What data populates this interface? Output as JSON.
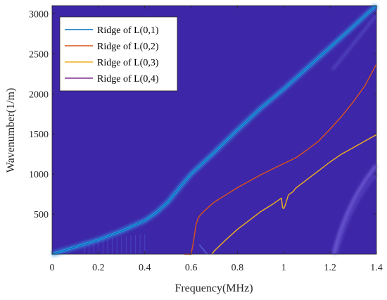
{
  "chart_data": {
    "type": "line",
    "title": "",
    "xlabel": "Frequency(MHz)",
    "ylabel": "Wavenumber(1/m)",
    "xlim": [
      0,
      1.4
    ],
    "ylim": [
      0,
      3100
    ],
    "x_ticks": [
      0,
      0.2,
      0.4,
      0.6,
      0.8,
      1,
      1.2,
      1.4
    ],
    "x_tick_labels": [
      "0",
      "0.2",
      "0.4",
      "0.6",
      "0.8",
      "1",
      "1.2",
      "1.4"
    ],
    "y_ticks": [
      500,
      1000,
      1500,
      2000,
      2500,
      3000
    ],
    "y_tick_labels": [
      "500",
      "1000",
      "1500",
      "2000",
      "2500",
      "3000"
    ],
    "grid": false,
    "legend_position": "top-left",
    "background": "spectrogram heatmap",
    "series": [
      {
        "name": "Ridge of L(0,1)",
        "color": "#0072BD",
        "x": [
          0,
          0.1,
          0.2,
          0.3,
          0.4,
          0.45,
          0.5,
          0.55,
          0.6,
          0.7,
          0.8,
          0.9,
          1.0,
          1.1,
          1.2,
          1.3,
          1.36,
          1.4
        ],
        "y": [
          0,
          90,
          180,
          290,
          420,
          520,
          650,
          830,
          1000,
          1270,
          1550,
          1820,
          2060,
          2320,
          2580,
          2840,
          3000,
          3100
        ]
      },
      {
        "name": "Ridge of L(0,2)",
        "color": "#D95319",
        "x": [
          0.57,
          0.6,
          0.61,
          0.62,
          0.63,
          0.64,
          0.65,
          0.68,
          0.7,
          0.75,
          0.8,
          0.85,
          0.9,
          0.95,
          1.0,
          1.05,
          1.1,
          1.15,
          1.2,
          1.25,
          1.3,
          1.35,
          1.4
        ],
        "y": [
          0,
          0,
          150,
          350,
          450,
          490,
          520,
          600,
          650,
          740,
          830,
          910,
          990,
          1060,
          1130,
          1200,
          1300,
          1410,
          1560,
          1720,
          1900,
          2100,
          2370
        ]
      },
      {
        "name": "Ridge of L(0,3)",
        "color": "#EDB120",
        "x": [
          0.69,
          0.7,
          0.75,
          0.8,
          0.85,
          0.9,
          0.95,
          0.99,
          0.995,
          1.0,
          1.005,
          1.02,
          1.04,
          1.05,
          1.1,
          1.15,
          1.2,
          1.25,
          1.3,
          1.35,
          1.4
        ],
        "y": [
          0,
          40,
          180,
          310,
          420,
          530,
          620,
          700,
          580,
          570,
          600,
          740,
          780,
          820,
          930,
          1040,
          1150,
          1250,
          1330,
          1410,
          1490
        ]
      },
      {
        "name": "Ridge of L(0,4)",
        "color": "#7E2F8E",
        "x": [],
        "y": []
      }
    ]
  }
}
